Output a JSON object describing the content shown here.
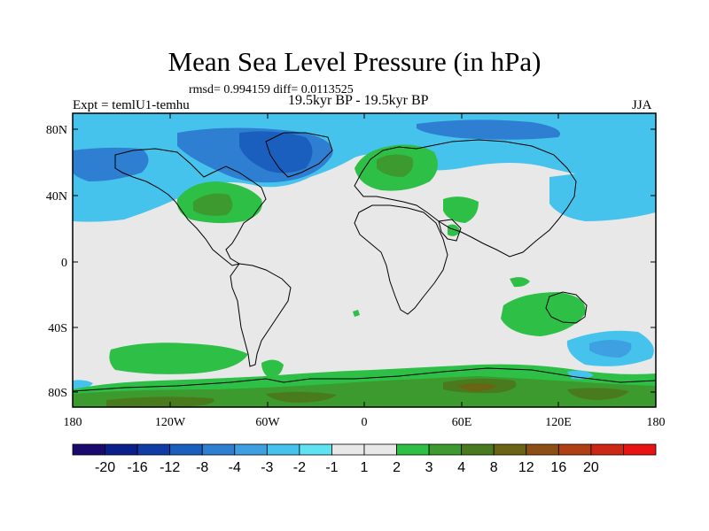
{
  "title": "Mean Sea Level Pressure (in hPa)",
  "stats": "rmsd= 0.994159 diff= 0.0113525",
  "left_label": "Expt = temlU1-temhu",
  "center_label": "19.5kyr BP - 19.5kyr BP",
  "right_label": "JJA",
  "lat_ticks": [
    "80N",
    "40N",
    "0",
    "40S",
    "80S"
  ],
  "lon_ticks": [
    "180",
    "120W",
    "60W",
    "0",
    "60E",
    "120E",
    "180"
  ],
  "colorbar": {
    "colors": [
      "#1a0a6e",
      "#0a1e8c",
      "#0f3ca5",
      "#1a5fbe",
      "#2e7fd2",
      "#3ea0e0",
      "#46c3ec",
      "#5fe3f2",
      "#e8e8e8",
      "#e8e8e8",
      "#2ebf46",
      "#3c9a2e",
      "#4a7a1e",
      "#6a6414",
      "#8c5014",
      "#b04014",
      "#cc2814",
      "#e81414"
    ],
    "labels": [
      "-20",
      "-16",
      "-12",
      "-8",
      "-4",
      "-3",
      "-2",
      "-1",
      "1",
      "2",
      "3",
      "4",
      "8",
      "12",
      "16",
      "20"
    ]
  }
}
